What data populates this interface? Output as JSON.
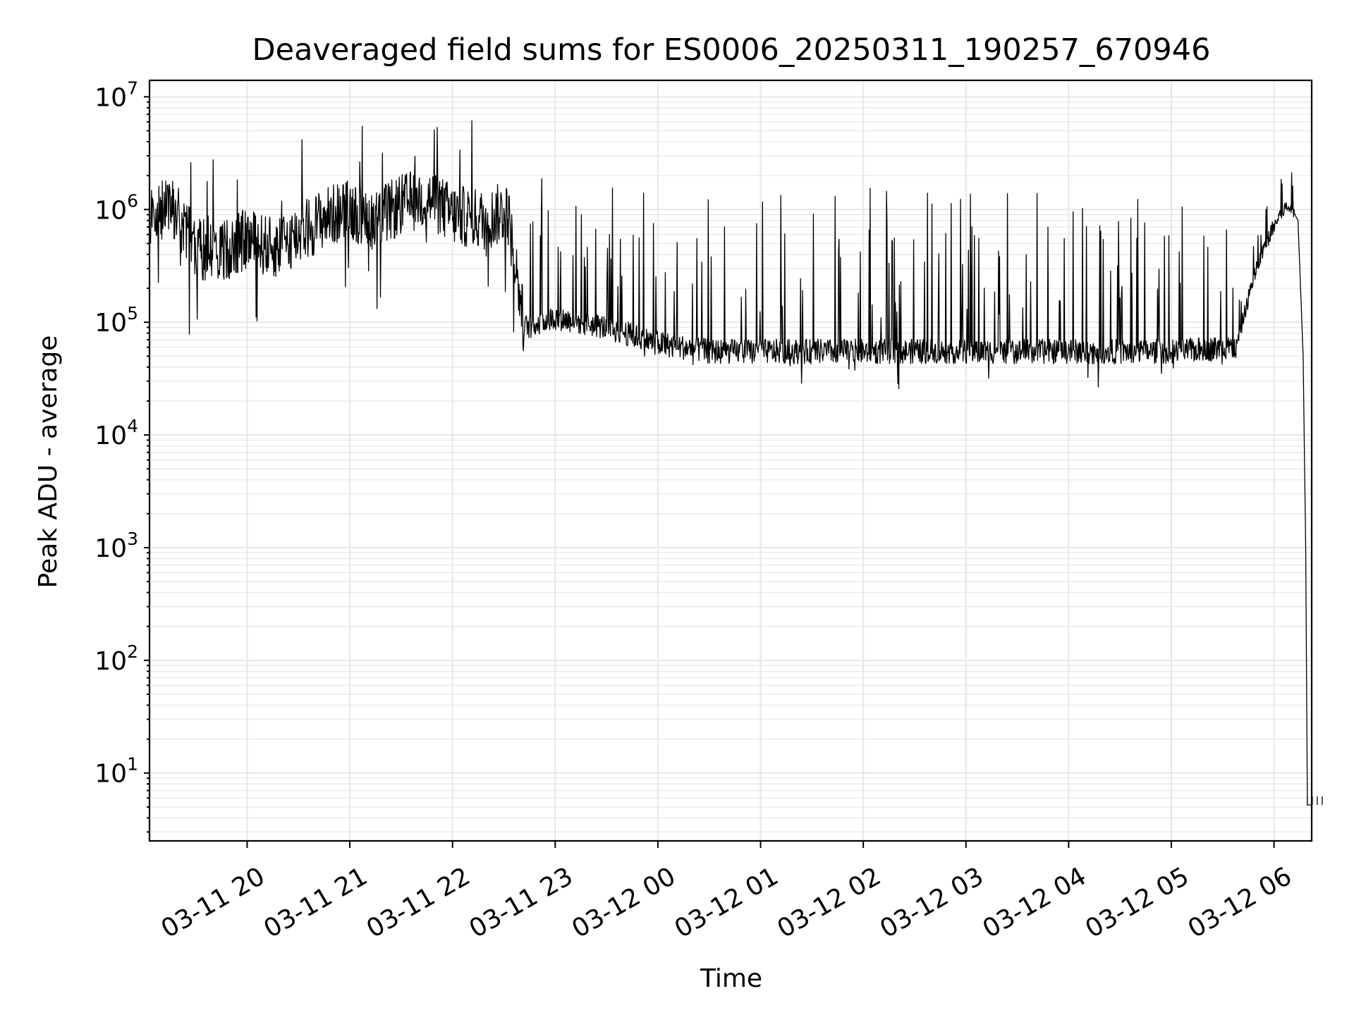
{
  "chart_data": {
    "type": "line",
    "title": "Deaveraged field sums for ES0006_20250311_190257_670946",
    "xlabel": "Time",
    "ylabel": "Peak ADU - average",
    "yscale": "log",
    "ylim": [
      2.5,
      14000000
    ],
    "xlim": [
      "2025-03-11T19:02:57",
      "2025-03-12T06:22:00"
    ],
    "grid": true,
    "line_color": "#000000",
    "grid_color": "#e6e6e6",
    "y_ticks": [
      {
        "value": 10,
        "base": "10",
        "exp": "1"
      },
      {
        "value": 100,
        "base": "10",
        "exp": "2"
      },
      {
        "value": 1000,
        "base": "10",
        "exp": "3"
      },
      {
        "value": 10000,
        "base": "10",
        "exp": "4"
      },
      {
        "value": 100000,
        "base": "10",
        "exp": "5"
      },
      {
        "value": 1000000,
        "base": "10",
        "exp": "6"
      },
      {
        "value": 10000000,
        "base": "10",
        "exp": "7"
      }
    ],
    "x_ticks": [
      {
        "time": "2025-03-11T20:00:00",
        "label": "03-11 20"
      },
      {
        "time": "2025-03-11T21:00:00",
        "label": "03-11 21"
      },
      {
        "time": "2025-03-11T22:00:00",
        "label": "03-11 22"
      },
      {
        "time": "2025-03-11T23:00:00",
        "label": "03-11 23"
      },
      {
        "time": "2025-03-12T00:00:00",
        "label": "03-12 00"
      },
      {
        "time": "2025-03-12T01:00:00",
        "label": "03-12 01"
      },
      {
        "time": "2025-03-12T02:00:00",
        "label": "03-12 02"
      },
      {
        "time": "2025-03-12T03:00:00",
        "label": "03-12 03"
      },
      {
        "time": "2025-03-12T04:00:00",
        "label": "03-12 04"
      },
      {
        "time": "2025-03-12T05:00:00",
        "label": "03-12 05"
      },
      {
        "time": "2025-03-12T06:00:00",
        "label": "03-12 06"
      }
    ],
    "series": [
      {
        "points": [
          {
            "t": "2025-03-11T19:03:00",
            "y": 900000
          },
          {
            "t": "2025-03-11T19:15:00",
            "y": 1100000
          },
          {
            "t": "2025-03-11T19:30:00",
            "y": 450000
          },
          {
            "t": "2025-03-11T19:45:00",
            "y": 420000
          },
          {
            "t": "2025-03-11T20:00:00",
            "y": 550000
          },
          {
            "t": "2025-03-11T20:15:00",
            "y": 450000
          },
          {
            "t": "2025-03-11T20:30:00",
            "y": 600000
          },
          {
            "t": "2025-03-11T20:45:00",
            "y": 850000
          },
          {
            "t": "2025-03-11T21:00:00",
            "y": 1000000
          },
          {
            "t": "2025-03-11T21:15:00",
            "y": 800000
          },
          {
            "t": "2025-03-11T21:30:00",
            "y": 1100000
          },
          {
            "t": "2025-03-11T21:45:00",
            "y": 1300000
          },
          {
            "t": "2025-03-11T22:00:00",
            "y": 900000
          },
          {
            "t": "2025-03-11T22:20:00",
            "y": 800000
          },
          {
            "t": "2025-03-11T22:32:00",
            "y": 1000000
          },
          {
            "t": "2025-03-11T22:42:00",
            "y": 90000
          },
          {
            "t": "2025-03-11T23:00:00",
            "y": 110000
          },
          {
            "t": "2025-03-11T23:30:00",
            "y": 90000
          },
          {
            "t": "2025-03-12T00:00:00",
            "y": 65000
          },
          {
            "t": "2025-03-12T00:30:00",
            "y": 55000
          },
          {
            "t": "2025-03-12T01:00:00",
            "y": 55000
          },
          {
            "t": "2025-03-12T02:00:00",
            "y": 55000
          },
          {
            "t": "2025-03-12T03:00:00",
            "y": 55000
          },
          {
            "t": "2025-03-12T04:00:00",
            "y": 55000
          },
          {
            "t": "2025-03-12T05:00:00",
            "y": 55000
          },
          {
            "t": "2025-03-12T05:38:00",
            "y": 60000
          },
          {
            "t": "2025-03-12T05:48:00",
            "y": 250000
          },
          {
            "t": "2025-03-12T05:55:00",
            "y": 500000
          },
          {
            "t": "2025-03-12T06:05:00",
            "y": 1000000
          },
          {
            "t": "2025-03-12T06:10:00",
            "y": 1050000
          },
          {
            "t": "2025-03-12T06:14:00",
            "y": 800000
          },
          {
            "t": "2025-03-12T06:17:00",
            "y": 50000
          },
          {
            "t": "2025-03-12T06:18:30",
            "y": 1000
          },
          {
            "t": "2025-03-12T06:19:30",
            "y": 5.2
          },
          {
            "t": "2025-03-12T06:22:00",
            "y": 5.2
          }
        ]
      }
    ]
  }
}
